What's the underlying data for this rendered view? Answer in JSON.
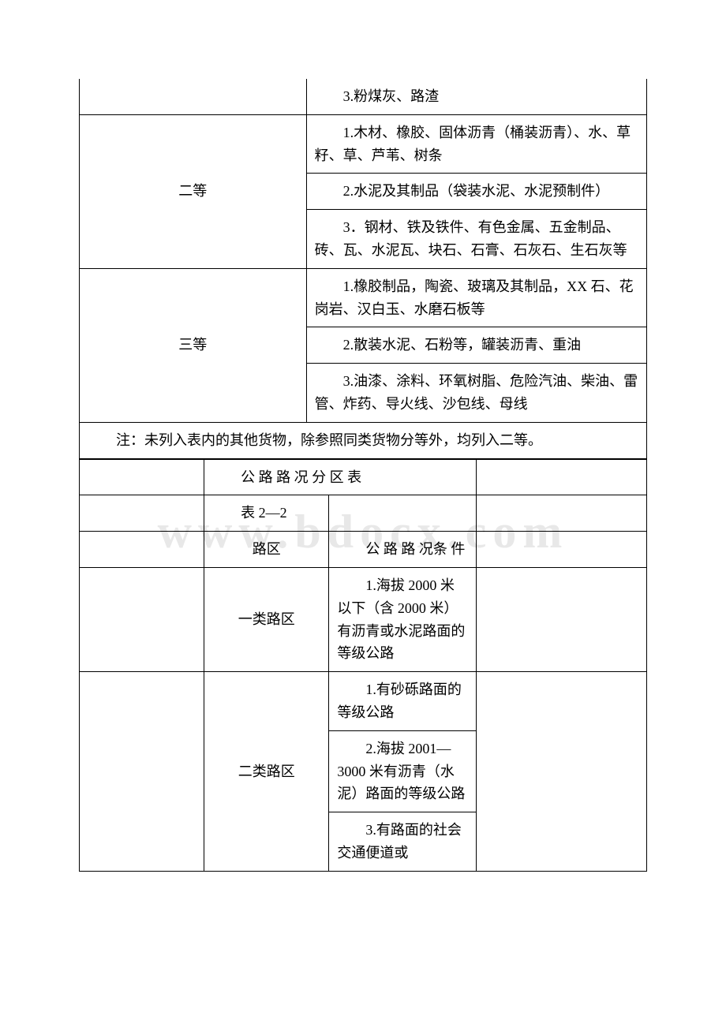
{
  "table1": {
    "col_widths": [
      "40%",
      "60%"
    ],
    "border_color": "#000000",
    "font_size": 18,
    "rows": [
      {
        "grade": "",
        "items": [
          "3.粉煤灰、路渣"
        ]
      },
      {
        "grade": "二等",
        "items": [
          "1.木材、橡胶、固体沥青（桶装沥青）、水、草籽、草、芦苇、树条",
          "2.水泥及其制品（袋装水泥、水泥预制件）",
          "3．钢材、铁及铁件、有色金属、五金制品、砖、瓦、水泥瓦、块石、石膏、石灰石、生石灰等"
        ]
      },
      {
        "grade": "三等",
        "items": [
          "1.橡胶制品，陶瓷、玻璃及其制品，XX 石、花岗岩、汉白玉、水磨石板等",
          "2.散装水泥、石粉等，罐装沥青、重油",
          "3.油漆、涂料、环氧树脂、危险汽油、柴油、雷管、炸药、导火线、沙包线、母线"
        ]
      }
    ],
    "note": "注：未列入表内的其他货物，除参照同类货物分等外，均列入二等。"
  },
  "table2": {
    "title": "公 路 路 况 分 区 表",
    "subtitle": "表 2—2",
    "col_widths": [
      "22%",
      "22%",
      "26%",
      "30%"
    ],
    "header": {
      "col2": "路区",
      "col3": "公 路 路 况条 件"
    },
    "rows": [
      {
        "zone": "一类路区",
        "conditions": [
          "1.海拔 2000 米以下（含 2000 米）有沥青或水泥路面的等级公路"
        ]
      },
      {
        "zone": "二类路区",
        "conditions": [
          "1.有砂砾路面的等级公路",
          "2.海拔 2001—3000 米有沥青（水泥）路面的等级公路",
          "3.有路面的社会交通便道或"
        ]
      }
    ]
  }
}
